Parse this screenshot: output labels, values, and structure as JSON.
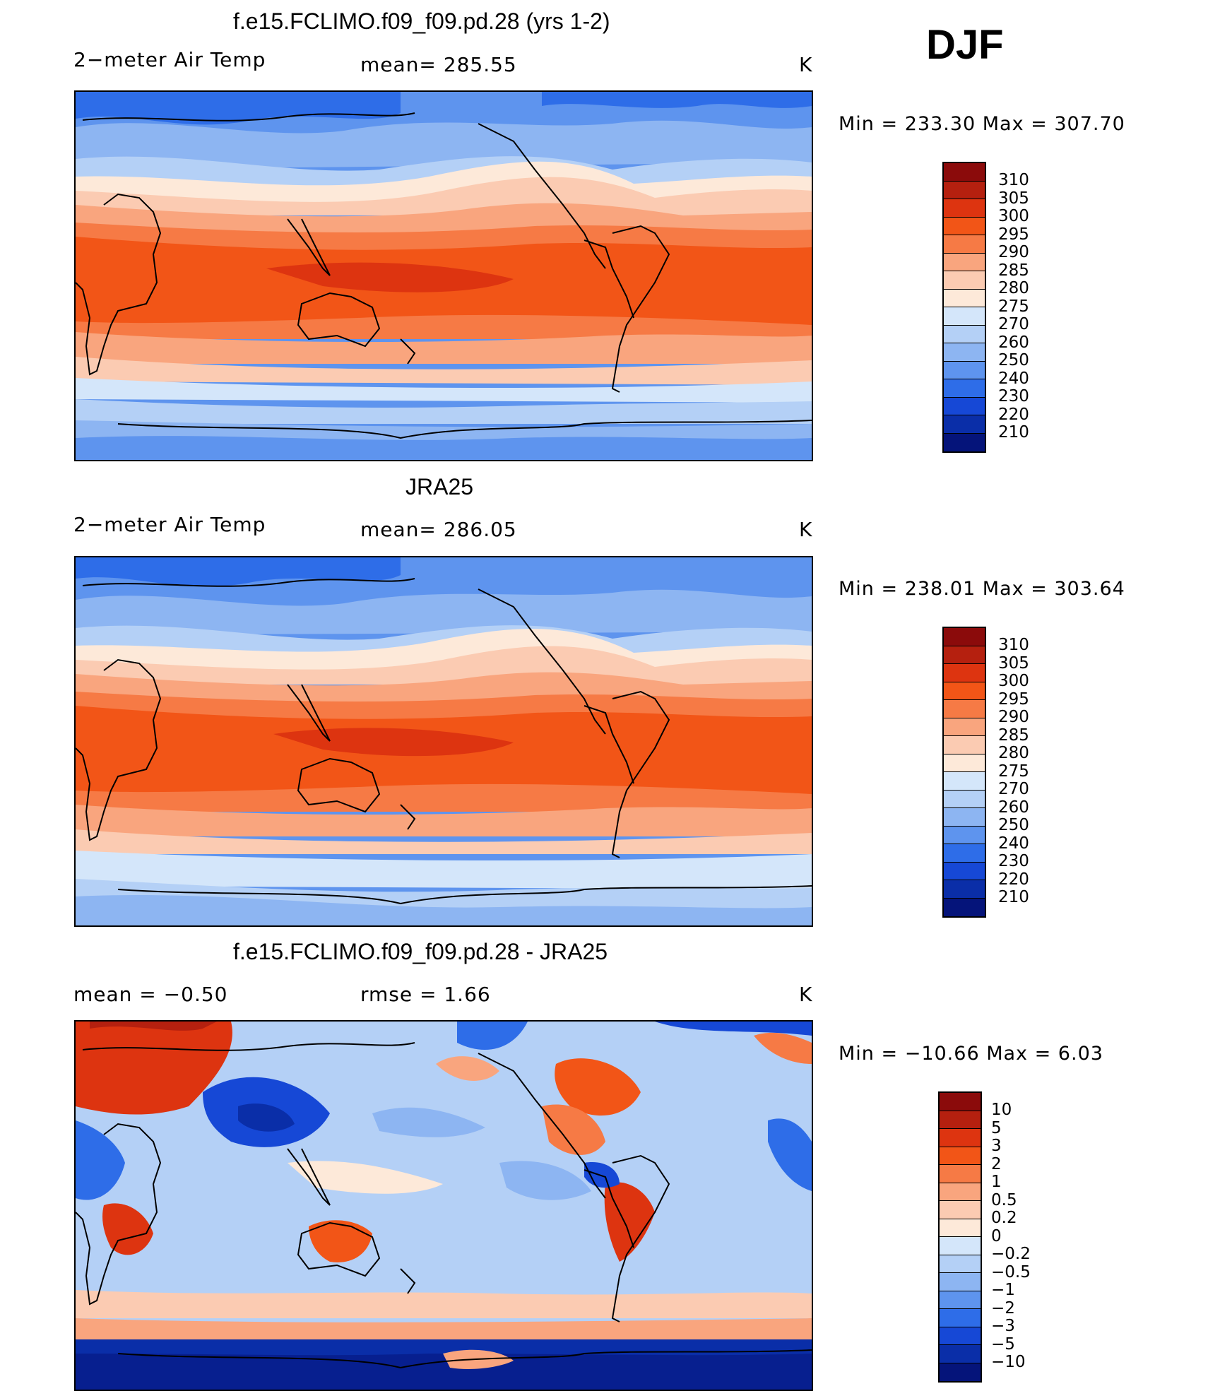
{
  "header": {
    "season": "DJF"
  },
  "panels": [
    {
      "title": "f.e15.FCLIMO.f09_f09.pd.28 (yrs 1-2)",
      "left_label": "2−meter Air Temp",
      "center_label": "mean=  285.55",
      "right_label": "K",
      "minmax": "Min  =  233.30  Max  =  307.70",
      "colorbar": {
        "labels": [
          "310",
          "305",
          "300",
          "295",
          "290",
          "285",
          "280",
          "275",
          "270",
          "260",
          "250",
          "240",
          "230",
          "220",
          "210"
        ],
        "colors": [
          "#8b0b0b",
          "#b5200f",
          "#dd3410",
          "#f25517",
          "#f67a45",
          "#f9a57e",
          "#fbcbb2",
          "#fde9d9",
          "#d4e6fa",
          "#b4d0f6",
          "#8db5f2",
          "#5e94ee",
          "#2e6de8",
          "#1648d6",
          "#0a2ea8",
          "#05147a"
        ]
      }
    },
    {
      "title": "JRA25",
      "left_label": "2−meter Air Temp",
      "center_label": "mean=  286.05",
      "right_label": "K",
      "minmax": "Min  =  238.01  Max  =  303.64",
      "colorbar": {
        "labels": [
          "310",
          "305",
          "300",
          "295",
          "290",
          "285",
          "280",
          "275",
          "270",
          "260",
          "250",
          "240",
          "230",
          "220",
          "210"
        ],
        "colors": [
          "#8b0b0b",
          "#b5200f",
          "#dd3410",
          "#f25517",
          "#f67a45",
          "#f9a57e",
          "#fbcbb2",
          "#fde9d9",
          "#d4e6fa",
          "#b4d0f6",
          "#8db5f2",
          "#5e94ee",
          "#2e6de8",
          "#1648d6",
          "#0a2ea8",
          "#05147a"
        ]
      }
    },
    {
      "title": "f.e15.FCLIMO.f09_f09.pd.28 - JRA25",
      "left_label": "mean  =     −0.50",
      "center_label": "rmse  =       1.66",
      "right_label": "K",
      "minmax": "Min  =  −10.66  Max  =       6.03",
      "colorbar": {
        "labels": [
          "10",
          "5",
          "3",
          "2",
          "1",
          "0.5",
          "0.2",
          "0",
          "−0.2",
          "−0.5",
          "−1",
          "−2",
          "−3",
          "−5",
          "−10"
        ],
        "colors": [
          "#8b0b0b",
          "#b5200f",
          "#dd3410",
          "#f25517",
          "#f67a45",
          "#f9a57e",
          "#fbcbb2",
          "#fde9d9",
          "#d4e6fa",
          "#b4d0f6",
          "#8db5f2",
          "#5e94ee",
          "#2e6de8",
          "#1648d6",
          "#0a2ea8",
          "#05147a"
        ]
      }
    }
  ]
}
